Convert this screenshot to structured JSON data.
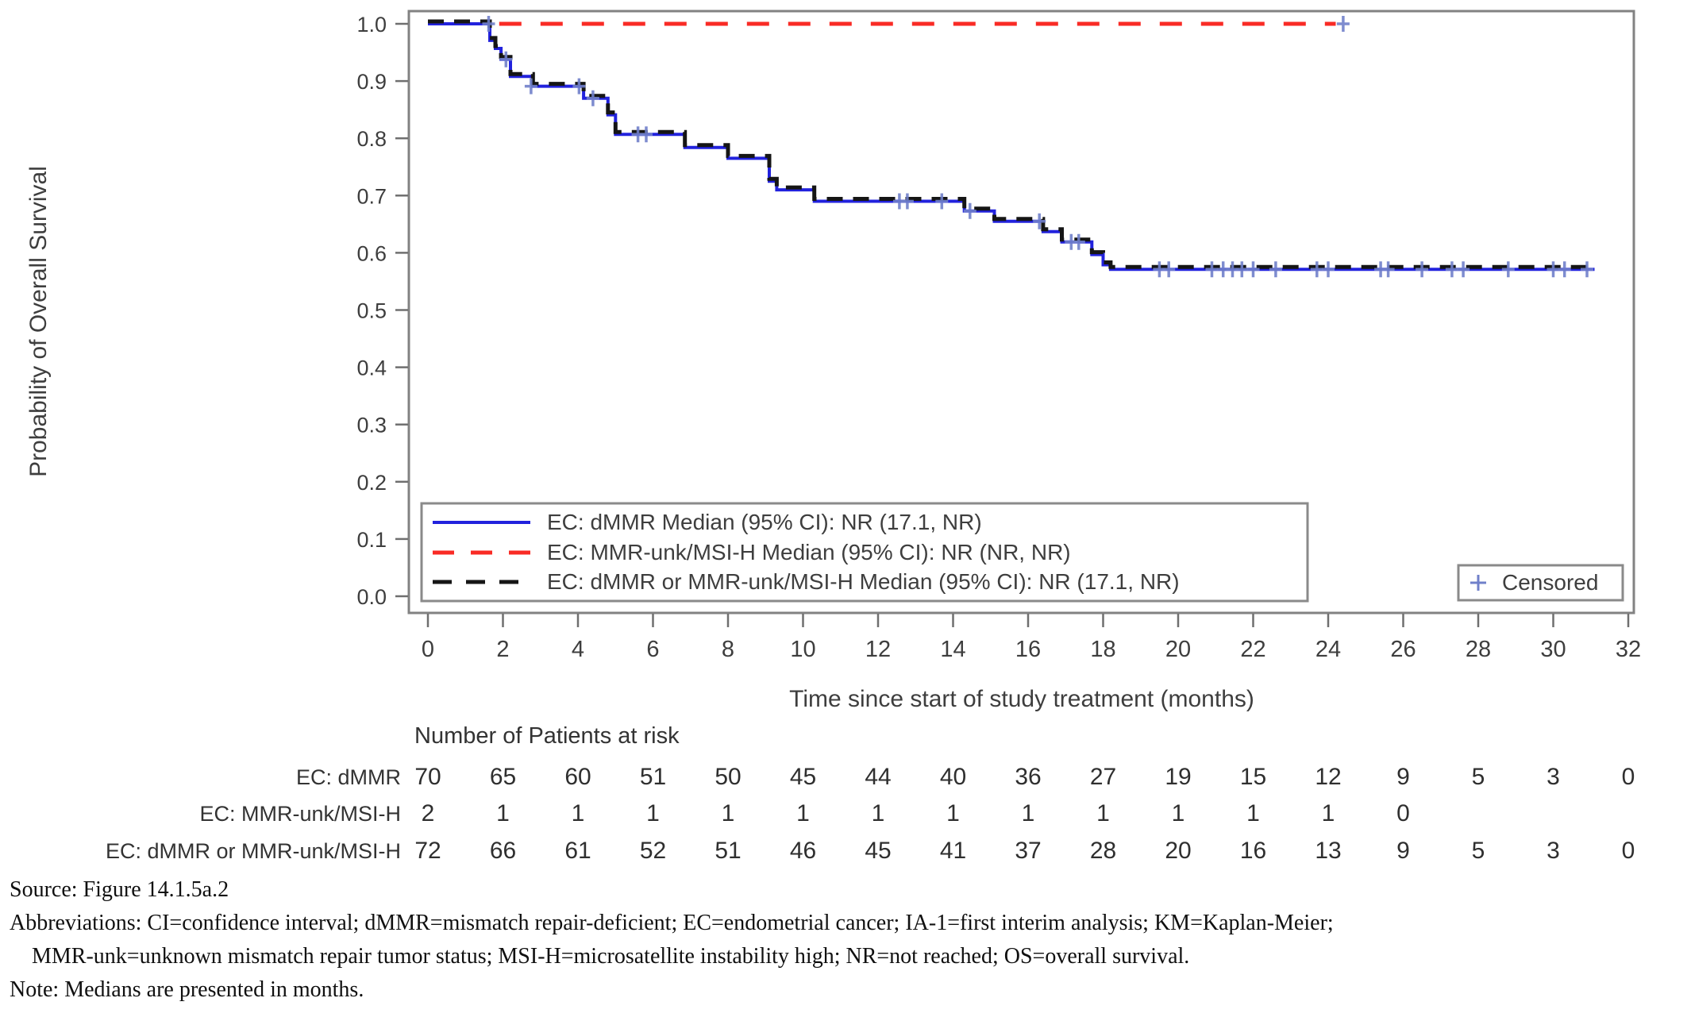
{
  "chart_data": {
    "type": "line",
    "subtype": "kaplan_meier_step",
    "xlabel": "Time since start of study treatment (months)",
    "ylabel": "Probability of Overall Survival",
    "xlim": [
      0,
      32
    ],
    "ylim": [
      0.0,
      1.0
    ],
    "xticks": [
      0,
      2,
      4,
      6,
      8,
      10,
      12,
      14,
      16,
      18,
      20,
      22,
      24,
      26,
      28,
      30,
      32
    ],
    "yticks": [
      "0.0",
      "0.1",
      "0.2",
      "0.3",
      "0.4",
      "0.5",
      "0.6",
      "0.7",
      "0.8",
      "0.9",
      "1.0"
    ],
    "grid": false,
    "legend_position": "inside lower-left",
    "censored_legend": "Censored",
    "series": [
      {
        "name": "EC: dMMR",
        "legend_label": "EC: dMMR Median (95% CI):  NR (17.1, NR)",
        "color": "#2222dd",
        "line_style": "solid",
        "line_start": 0,
        "line_end": 31.1,
        "steps": [
          [
            0,
            1.0
          ],
          [
            1.65,
            0.971
          ],
          [
            1.8,
            0.957
          ],
          [
            1.95,
            0.938
          ],
          [
            2.2,
            0.908
          ],
          [
            2.8,
            0.891
          ],
          [
            4.15,
            0.87
          ],
          [
            4.8,
            0.841
          ],
          [
            5.0,
            0.807
          ],
          [
            6.85,
            0.784
          ],
          [
            8.0,
            0.765
          ],
          [
            9.1,
            0.725
          ],
          [
            9.3,
            0.71
          ],
          [
            10.3,
            0.69
          ],
          [
            14.3,
            0.673
          ],
          [
            15.1,
            0.655
          ],
          [
            16.4,
            0.637
          ],
          [
            16.9,
            0.619
          ],
          [
            17.7,
            0.597
          ],
          [
            18.0,
            0.579
          ],
          [
            18.2,
            0.571
          ]
        ],
        "censors": [
          [
            1.62,
            1.0
          ],
          [
            2.08,
            0.938
          ],
          [
            2.75,
            0.891
          ],
          [
            4.03,
            0.891
          ],
          [
            4.4,
            0.87
          ],
          [
            5.6,
            0.807
          ],
          [
            5.82,
            0.807
          ],
          [
            12.57,
            0.69
          ],
          [
            12.78,
            0.69
          ],
          [
            13.7,
            0.69
          ],
          [
            14.45,
            0.673
          ],
          [
            16.3,
            0.655
          ],
          [
            17.15,
            0.619
          ],
          [
            17.35,
            0.619
          ],
          [
            19.5,
            0.571
          ],
          [
            19.75,
            0.571
          ],
          [
            20.9,
            0.571
          ],
          [
            21.2,
            0.571
          ],
          [
            21.45,
            0.571
          ],
          [
            21.7,
            0.571
          ],
          [
            22.0,
            0.571
          ],
          [
            22.6,
            0.571
          ],
          [
            23.7,
            0.571
          ],
          [
            24.0,
            0.571
          ],
          [
            25.4,
            0.571
          ],
          [
            25.6,
            0.571
          ],
          [
            26.5,
            0.571
          ],
          [
            27.3,
            0.571
          ],
          [
            27.6,
            0.571
          ],
          [
            28.8,
            0.571
          ],
          [
            30.0,
            0.571
          ],
          [
            30.3,
            0.571
          ],
          [
            30.9,
            0.571
          ]
        ]
      },
      {
        "name": "EC: MMR-unk/MSI-H",
        "legend_label": "EC: MMR-unk/MSI-H Median (95% CI):  NR (NR, NR)",
        "color": "#f92b25",
        "line_style": "dashed",
        "line_start": 1.9,
        "line_end": 24.2,
        "steps": [
          [
            0,
            1.0
          ]
        ],
        "censors": [
          [
            24.4,
            1.0
          ]
        ]
      },
      {
        "name": "EC: dMMR or MMR-unk/MSI-H",
        "legend_label": "EC: dMMR or MMR-unk/MSI-H Median (95% CI):  NR (17.1, NR)",
        "color": "#151515",
        "line_style": "dashed",
        "line_start": 0,
        "line_end": 31.1,
        "steps": [
          [
            0,
            1.0
          ],
          [
            1.65,
            0.971
          ],
          [
            1.8,
            0.957
          ],
          [
            1.95,
            0.938
          ],
          [
            2.2,
            0.908
          ],
          [
            2.8,
            0.891
          ],
          [
            4.15,
            0.87
          ],
          [
            4.8,
            0.841
          ],
          [
            5.0,
            0.807
          ],
          [
            6.85,
            0.784
          ],
          [
            8.0,
            0.765
          ],
          [
            9.1,
            0.725
          ],
          [
            9.3,
            0.71
          ],
          [
            10.3,
            0.69
          ],
          [
            14.3,
            0.673
          ],
          [
            15.1,
            0.655
          ],
          [
            16.4,
            0.637
          ],
          [
            16.9,
            0.619
          ],
          [
            17.7,
            0.597
          ],
          [
            18.0,
            0.579
          ],
          [
            18.2,
            0.571
          ]
        ],
        "censors": []
      }
    ]
  },
  "at_risk": {
    "header": "Number of Patients at risk",
    "time_points": [
      0,
      2,
      4,
      6,
      8,
      10,
      12,
      14,
      16,
      18,
      20,
      22,
      24,
      26,
      28,
      30,
      32
    ],
    "rows": [
      {
        "label": "EC: dMMR",
        "counts": [
          70,
          65,
          60,
          51,
          50,
          45,
          44,
          40,
          36,
          27,
          19,
          15,
          12,
          9,
          5,
          3,
          0
        ]
      },
      {
        "label": "EC: MMR-unk/MSI-H",
        "counts": [
          2,
          1,
          1,
          1,
          1,
          1,
          1,
          1,
          1,
          1,
          1,
          1,
          1,
          0
        ]
      },
      {
        "label": "EC: dMMR or MMR-unk/MSI-H",
        "counts": [
          72,
          66,
          61,
          52,
          51,
          46,
          45,
          41,
          37,
          28,
          20,
          16,
          13,
          9,
          5,
          3,
          0
        ]
      }
    ]
  },
  "footnotes": {
    "source": "Source: Figure 14.1.5a.2",
    "abbrev_line1": "Abbreviations: CI=confidence interval; dMMR=mismatch repair-deficient; EC=endometrial cancer; IA-1=first interim analysis; KM=Kaplan-Meier;",
    "abbrev_line2": "MMR-unk=unknown mismatch repair tumor status; MSI-H=microsatellite instability high; NR=not reached; OS=overall survival.",
    "note": "Note: Medians are presented in months."
  },
  "colors": {
    "dmmr_blue": "#2222dd",
    "mmr_unk_red": "#f92b25",
    "combined_black": "#151515",
    "censor_mark": "#7080ca",
    "plot_border_gray": "#828282",
    "text_gray": "#3e3e3e"
  }
}
